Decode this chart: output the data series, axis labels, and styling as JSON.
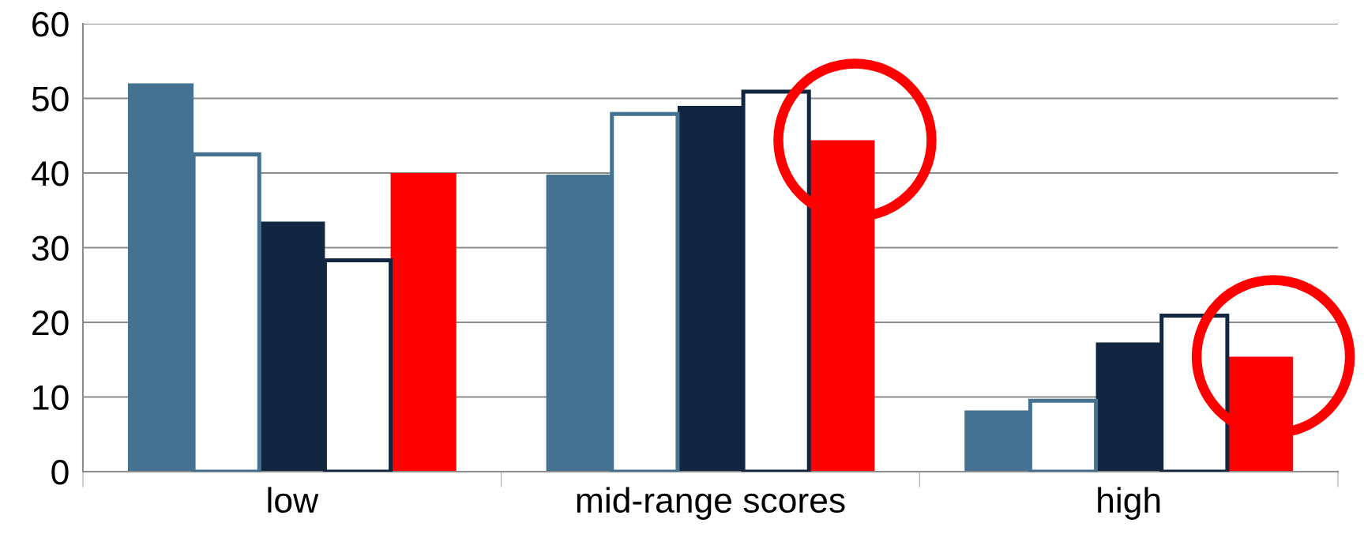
{
  "chart_data": {
    "type": "bar",
    "categories": [
      "low",
      "mid-range scores",
      "high"
    ],
    "series": [
      {
        "color": "#467292",
        "values": [
          52.0,
          39.8,
          8.2
        ]
      },
      {
        "color": "#467292",
        "values": [
          42.5,
          47.9,
          9.5
        ]
      },
      {
        "color": "#132641",
        "values": [
          33.5,
          49.0,
          17.3
        ]
      },
      {
        "color": "#132641",
        "values": [
          28.3,
          50.9,
          20.9
        ]
      },
      {
        "color": "#ff0000",
        "values": [
          40.0,
          44.4,
          15.4
        ]
      }
    ],
    "ylim": [
      0,
      60
    ],
    "yticks": [
      0,
      10,
      20,
      30,
      40,
      50,
      60
    ],
    "grid": "y",
    "legend": false
  }
}
